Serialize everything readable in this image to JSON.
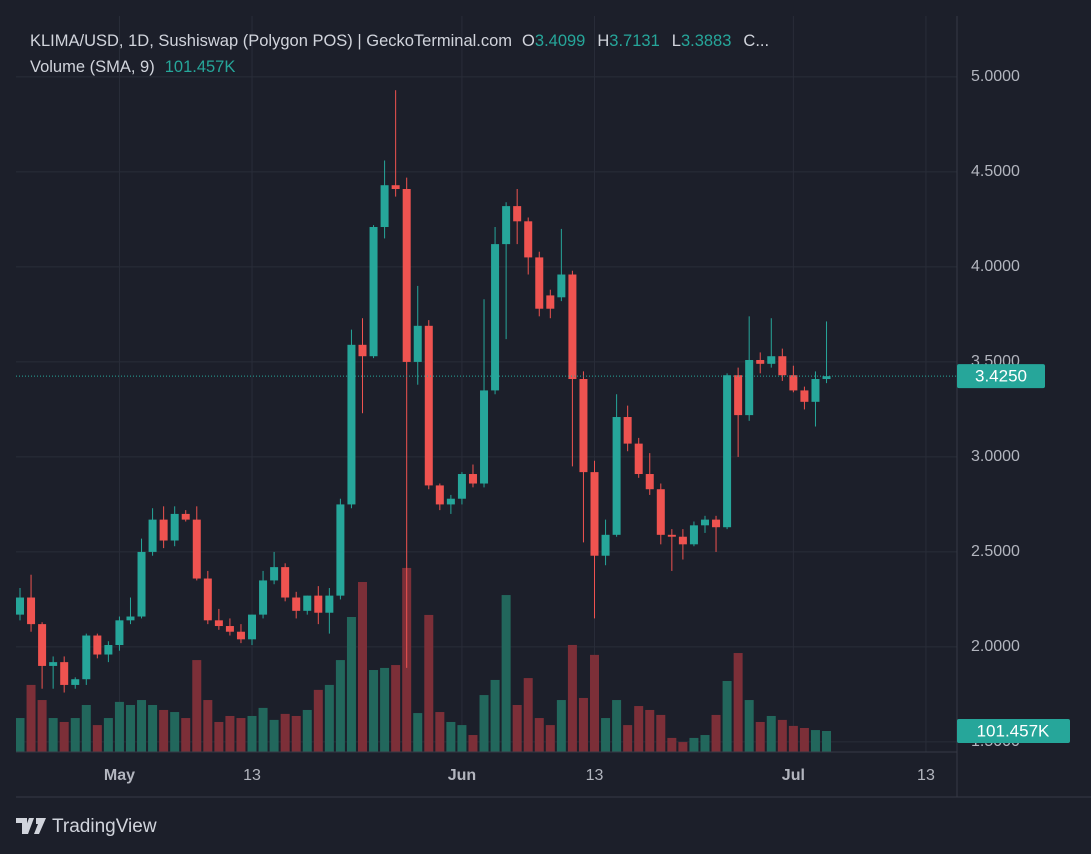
{
  "chart_data": {
    "type": "candlestick",
    "title": "KLIMA/USD, 1D, Sushiswap (Polygon POS) | GeckoTerminal.com",
    "ohlc_letters": [
      "O",
      "H",
      "L"
    ],
    "legend_close_label": "C...",
    "volume_title": "Volume (SMA, 9)",
    "last_close_label": "3.4250",
    "last_volume_label": "101.457K",
    "x": [
      "04-22",
      "04-23",
      "04-24",
      "04-25",
      "04-26",
      "04-27",
      "04-28",
      "04-29",
      "04-30",
      "05-01",
      "05-02",
      "05-03",
      "05-04",
      "05-05",
      "05-06",
      "05-07",
      "05-08",
      "05-09",
      "05-10",
      "05-11",
      "05-12",
      "05-13",
      "05-14",
      "05-15",
      "05-16",
      "05-17",
      "05-18",
      "05-19",
      "05-20",
      "05-21",
      "05-22",
      "05-23",
      "05-24",
      "05-25",
      "05-26",
      "05-27",
      "05-28",
      "05-29",
      "05-30",
      "05-31",
      "06-01",
      "06-02",
      "06-03",
      "06-04",
      "06-05",
      "06-06",
      "06-07",
      "06-08",
      "06-09",
      "06-10",
      "06-11",
      "06-12",
      "06-13",
      "06-14",
      "06-15",
      "06-16",
      "06-17",
      "06-18",
      "06-19",
      "06-20",
      "06-21",
      "06-22",
      "06-23",
      "06-24",
      "06-25",
      "06-26",
      "06-27",
      "06-28",
      "06-29",
      "06-30",
      "07-01",
      "07-02",
      "07-03",
      "07-04"
    ],
    "open": [
      2.17,
      2.26,
      2.12,
      1.9,
      1.92,
      1.8,
      1.83,
      2.06,
      1.96,
      2.01,
      2.14,
      2.16,
      2.5,
      2.67,
      2.56,
      2.7,
      2.67,
      2.36,
      2.14,
      2.11,
      2.08,
      2.04,
      2.17,
      2.35,
      2.42,
      2.26,
      2.19,
      2.27,
      2.18,
      2.27,
      2.75,
      3.59,
      3.53,
      4.21,
      4.43,
      4.41,
      3.5,
      3.69,
      2.85,
      2.75,
      2.78,
      2.91,
      2.86,
      3.35,
      4.12,
      4.32,
      4.24,
      4.05,
      3.85,
      3.84,
      3.96,
      3.41,
      2.92,
      2.48,
      2.59,
      3.21,
      3.07,
      2.91,
      2.83,
      2.59,
      2.58,
      2.54,
      2.64,
      2.67,
      2.63,
      3.43,
      3.22,
      3.51,
      3.49,
      3.53,
      3.43,
      3.35,
      3.29,
      3.4099
    ],
    "high": [
      2.31,
      2.38,
      2.13,
      1.95,
      1.95,
      1.84,
      2.07,
      2.07,
      2.03,
      2.16,
      2.26,
      2.57,
      2.73,
      2.74,
      2.74,
      2.72,
      2.74,
      2.4,
      2.2,
      2.15,
      2.12,
      2.17,
      2.4,
      2.5,
      2.44,
      2.29,
      2.27,
      2.32,
      2.31,
      2.78,
      3.67,
      3.73,
      4.22,
      4.56,
      4.93,
      4.47,
      3.9,
      3.72,
      2.86,
      2.8,
      2.92,
      2.96,
      3.83,
      4.21,
      4.34,
      4.41,
      4.26,
      4.08,
      3.88,
      4.2,
      3.98,
      3.45,
      2.98,
      2.67,
      3.33,
      3.27,
      3.1,
      3.02,
      2.86,
      2.62,
      2.62,
      2.66,
      2.69,
      2.69,
      3.44,
      3.47,
      3.74,
      3.55,
      3.73,
      3.57,
      3.48,
      3.37,
      3.45,
      3.7131
    ],
    "low": [
      2.14,
      2.08,
      1.78,
      1.78,
      1.76,
      1.78,
      1.8,
      1.94,
      1.92,
      1.98,
      2.12,
      2.15,
      2.48,
      2.52,
      2.53,
      2.66,
      2.35,
      2.12,
      2.09,
      2.06,
      2.02,
      2.01,
      2.15,
      2.33,
      2.24,
      2.15,
      2.17,
      2.12,
      2.07,
      2.25,
      2.73,
      3.23,
      3.52,
      4.15,
      4.37,
      1.89,
      3.38,
      2.83,
      2.72,
      2.7,
      2.75,
      2.84,
      2.84,
      3.33,
      3.62,
      4.12,
      3.96,
      3.74,
      3.73,
      3.82,
      2.95,
      2.55,
      2.15,
      2.43,
      2.58,
      3.03,
      2.89,
      2.8,
      2.54,
      2.4,
      2.46,
      2.53,
      2.6,
      2.5,
      2.62,
      3.0,
      3.19,
      3.44,
      3.47,
      3.4,
      3.34,
      3.25,
      3.16,
      3.3883
    ],
    "close": [
      2.26,
      2.12,
      1.9,
      1.92,
      1.8,
      1.83,
      2.06,
      1.96,
      2.01,
      2.14,
      2.16,
      2.5,
      2.67,
      2.56,
      2.7,
      2.67,
      2.36,
      2.14,
      2.11,
      2.08,
      2.04,
      2.17,
      2.35,
      2.42,
      2.26,
      2.19,
      2.27,
      2.18,
      2.27,
      2.75,
      3.59,
      3.53,
      4.21,
      4.43,
      4.41,
      3.5,
      3.69,
      2.85,
      2.75,
      2.78,
      2.91,
      2.86,
      3.35,
      4.12,
      4.32,
      4.24,
      4.05,
      3.78,
      3.78,
      3.96,
      3.41,
      2.92,
      2.48,
      2.59,
      3.21,
      3.07,
      2.91,
      2.83,
      2.59,
      2.58,
      2.54,
      2.64,
      2.67,
      2.63,
      3.43,
      3.22,
      3.51,
      3.49,
      3.53,
      3.43,
      3.35,
      3.29,
      3.41,
      3.425
    ],
    "volume": [
      164000,
      324000,
      251000,
      164000,
      145000,
      164000,
      227000,
      130000,
      164000,
      242000,
      227000,
      251000,
      227000,
      203000,
      193000,
      164000,
      444000,
      251000,
      145000,
      174000,
      164000,
      174000,
      213000,
      155000,
      184000,
      174000,
      203000,
      300000,
      324000,
      444000,
      652000,
      821000,
      396000,
      406000,
      420000,
      889000,
      188000,
      662000,
      193000,
      145000,
      130000,
      82000,
      275000,
      348000,
      758000,
      227000,
      357000,
      164000,
      130000,
      251000,
      517000,
      261000,
      469000,
      164000,
      251000,
      130000,
      222000,
      203000,
      179000,
      68000,
      48000,
      68000,
      82000,
      179000,
      343000,
      478000,
      251000,
      145000,
      174000,
      155000,
      126000,
      116000,
      106000,
      101457
    ],
    "up_color": "#26a69a",
    "down_color": "#ef5350",
    "volume_up_color": "#22675c",
    "volume_down_color": "#7c2f38",
    "xlim": [
      "04-22",
      "07-14"
    ],
    "xticks": [
      {
        "value": "05-01",
        "label": "May"
      },
      {
        "value": "05-13",
        "label": "13"
      },
      {
        "value": "06-01",
        "label": "Jun"
      },
      {
        "value": "06-13",
        "label": "13"
      },
      {
        "value": "07-01",
        "label": "Jul"
      },
      {
        "value": "07-13",
        "label": "13"
      }
    ],
    "ylim": [
      1.447,
      5.31
    ],
    "yticks": [
      {
        "value": 1.5,
        "label": "1.5000"
      },
      {
        "value": 2,
        "label": "2.0000"
      },
      {
        "value": 2.5,
        "label": "2.5000"
      },
      {
        "value": 3,
        "label": "3.0000"
      },
      {
        "value": 3.5,
        "label": "3.5000"
      },
      {
        "value": 4,
        "label": "4.0000"
      },
      {
        "value": 4.5,
        "label": "4.5000"
      },
      {
        "value": 5,
        "label": "5.0000"
      }
    ],
    "volume_ylim": [
      0,
      3545000
    ],
    "grid": true
  },
  "footer": {
    "brand": "TradingView"
  }
}
